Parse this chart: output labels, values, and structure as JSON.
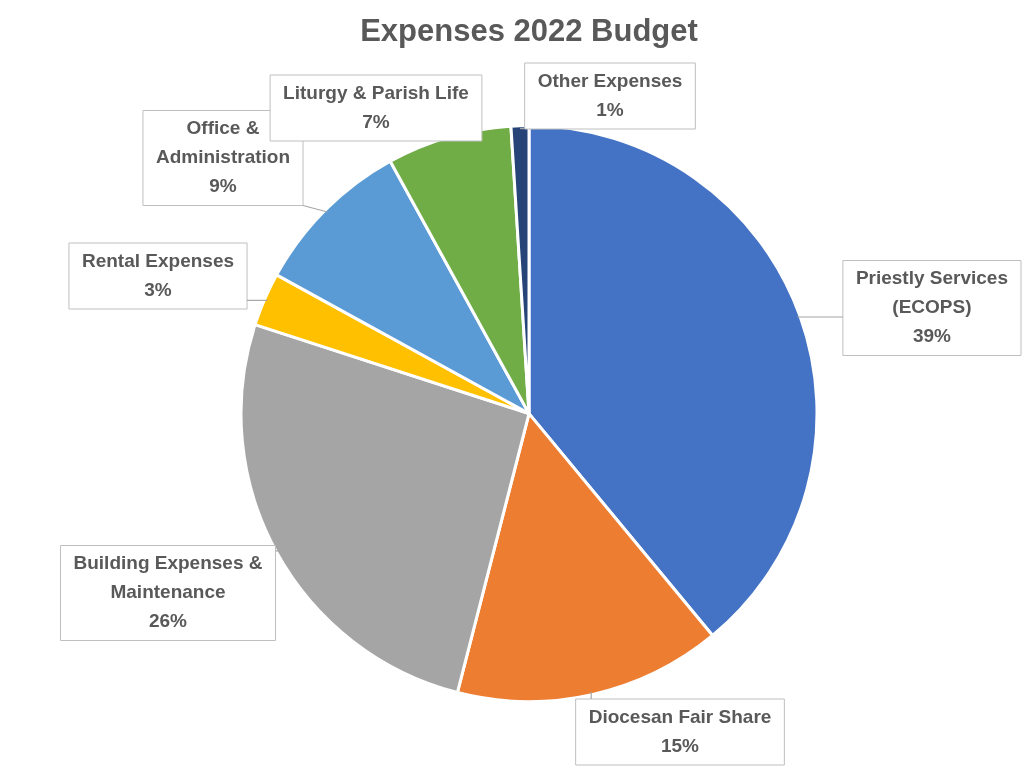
{
  "chart_data": {
    "type": "pie",
    "title": "Expenses 2022 Budget",
    "categories": [
      "Priestly Services (ECOPS)",
      "Diocesan Fair Share",
      "Building Expenses & Maintenance",
      "Rental Expenses",
      "Office & Administration",
      "Liturgy & Parish Life",
      "Other Expenses"
    ],
    "values": [
      39,
      15,
      26,
      3,
      9,
      7,
      1
    ],
    "colors": [
      "#4472c4",
      "#ed7d31",
      "#a5a5a5",
      "#ffc000",
      "#5b9bd5",
      "#70ad47",
      "#264478"
    ],
    "value_labels": [
      "39%",
      "15%",
      "26%",
      "3%",
      "9%",
      "7%",
      "1%"
    ],
    "legend": false
  }
}
